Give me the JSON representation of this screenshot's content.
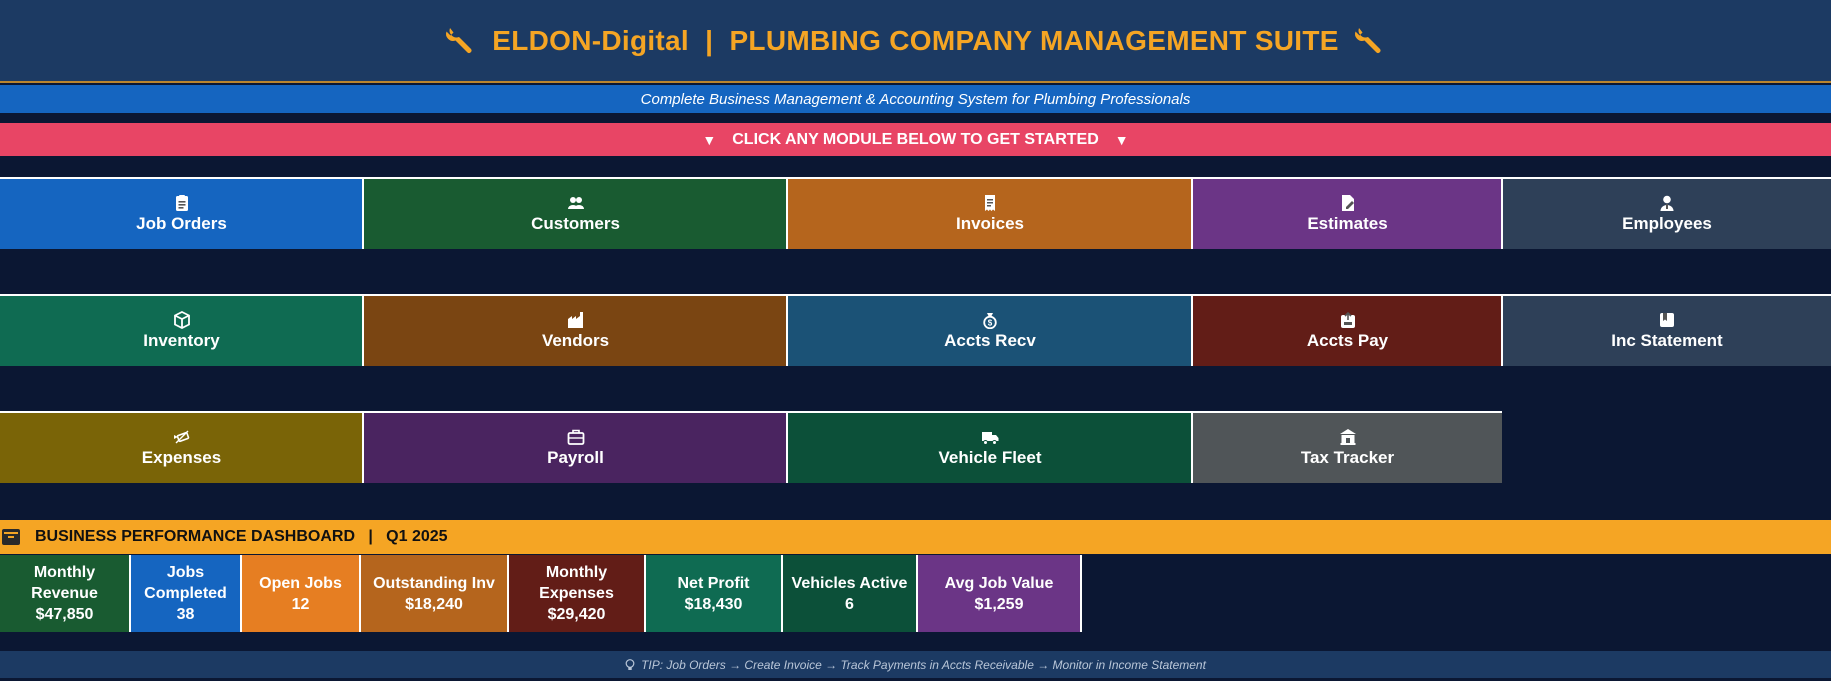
{
  "header": {
    "title": "ELDON-Digital  |  PLUMBING COMPANY MANAGEMENT SUITE",
    "left_icon": "wrench-icon",
    "right_icon": "wrench-icon",
    "title_color": "#f5a524"
  },
  "subtitle": "Complete Business Management & Accounting System for Plumbing Professionals",
  "cta": {
    "left_arrow": "▼",
    "label": "CLICK ANY MODULE BELOW TO GET STARTED",
    "right_arrow": "▼"
  },
  "modules": [
    {
      "label": "Job Orders",
      "icon": "clipboard-icon",
      "color": "#1565c0"
    },
    {
      "label": "Customers",
      "icon": "people-icon",
      "color": "#195b31"
    },
    {
      "label": "Invoices",
      "icon": "receipt-icon",
      "color": "#b5651d"
    },
    {
      "label": "Estimates",
      "icon": "edit-document-icon",
      "color": "#6b3586"
    },
    {
      "label": "Employees",
      "icon": "person-icon",
      "color": "#2e4058"
    },
    {
      "label": "Inventory",
      "icon": "box-icon",
      "color": "#0f6b52"
    },
    {
      "label": "Vendors",
      "icon": "factory-icon",
      "color": "#7a4512"
    },
    {
      "label": "Accts Recv",
      "icon": "money-bag-icon",
      "color": "#1b5276"
    },
    {
      "label": "Accts Pay",
      "icon": "outbox-icon",
      "color": "#621d17"
    },
    {
      "label": "Inc Statement",
      "icon": "ledger-icon",
      "color": "#2e4058"
    },
    {
      "label": "Expenses",
      "icon": "money-wings-icon",
      "color": "#7a6407"
    },
    {
      "label": "Payroll",
      "icon": "briefcase-icon",
      "color": "#4a2460"
    },
    {
      "label": "Vehicle Fleet",
      "icon": "truck-icon",
      "color": "#0c5039"
    },
    {
      "label": "Tax Tracker",
      "icon": "bank-icon",
      "color": "#505558"
    }
  ],
  "dashboard": {
    "icon": "archive-icon",
    "title": "BUSINESS PERFORMANCE DASHBOARD   |   Q1 2025",
    "kpis": [
      {
        "line1": "Monthly",
        "line2": "Revenue",
        "value": "$47,850",
        "color": "#195b31"
      },
      {
        "line1": "Jobs",
        "line2": "Completed",
        "value": "38",
        "color": "#1565c0"
      },
      {
        "line1": "Open Jobs",
        "line2": "",
        "value": "12",
        "color": "#e67e22"
      },
      {
        "line1": "Outstanding Inv",
        "line2": "",
        "value": "$18,240",
        "color": "#b5651d"
      },
      {
        "line1": "Monthly",
        "line2": "Expenses",
        "value": "$29,420",
        "color": "#621d17"
      },
      {
        "line1": "Net Profit",
        "line2": "",
        "value": "$18,430",
        "color": "#0f6b52"
      },
      {
        "line1": "Vehicles Active",
        "line2": "",
        "value": "6",
        "color": "#0c5039"
      },
      {
        "line1": "Avg Job Value",
        "line2": "",
        "value": "$1,259",
        "color": "#6b3586"
      }
    ]
  },
  "tip": {
    "icon": "lightbulb-icon",
    "text": "TIP: Job Orders → Create Invoice → Track Payments in Accts Receivable → Monitor in Income Statement"
  }
}
